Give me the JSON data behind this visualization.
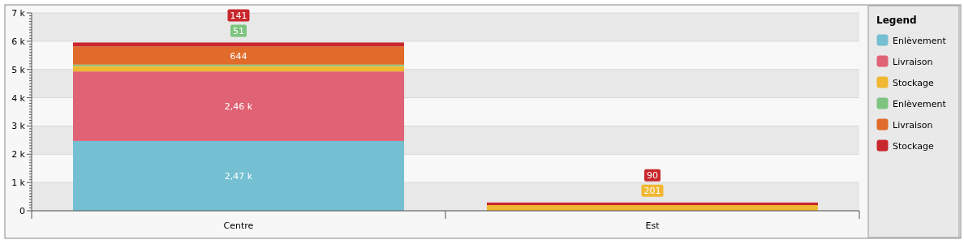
{
  "chart_data": {
    "type": "bar",
    "stacked": true,
    "categories": [
      "Centre",
      "Est"
    ],
    "series": [
      {
        "name": "Enlèvement",
        "color": "#74bfd2",
        "values": [
          2470,
          null
        ],
        "value_labels": [
          "2,47 k",
          null
        ]
      },
      {
        "name": "Livraison",
        "color": "#e06275",
        "values": [
          2460,
          null
        ],
        "value_labels": [
          "2,46 k",
          null
        ]
      },
      {
        "name": "Stockage",
        "color": "#f0b731",
        "values": [
          190,
          201
        ],
        "value_labels": [
          null,
          "201"
        ]
      },
      {
        "name": "Enlèvement",
        "color": "#7cc47f",
        "values": [
          51,
          null
        ],
        "value_labels": [
          "51",
          null
        ]
      },
      {
        "name": "Livraison",
        "color": "#e06b2a",
        "values": [
          644,
          null
        ],
        "value_labels": [
          "644",
          null
        ]
      },
      {
        "name": "Stockage",
        "color": "#c8282d",
        "values": [
          141,
          90
        ],
        "value_labels": [
          "141",
          "90"
        ]
      }
    ],
    "ylim": [
      0,
      7000
    ],
    "yticks": [
      {
        "value": 0,
        "label": "0"
      },
      {
        "value": 1000,
        "label": "1 k"
      },
      {
        "value": 2000,
        "label": "2 k"
      },
      {
        "value": 3000,
        "label": "3 k"
      },
      {
        "value": 4000,
        "label": "4 k"
      },
      {
        "value": 5000,
        "label": "5 k"
      },
      {
        "value": 6000,
        "label": "6 k"
      },
      {
        "value": 7000,
        "label": "7 k"
      }
    ],
    "grid": true,
    "legend": "right",
    "legend_title": "Legend"
  }
}
